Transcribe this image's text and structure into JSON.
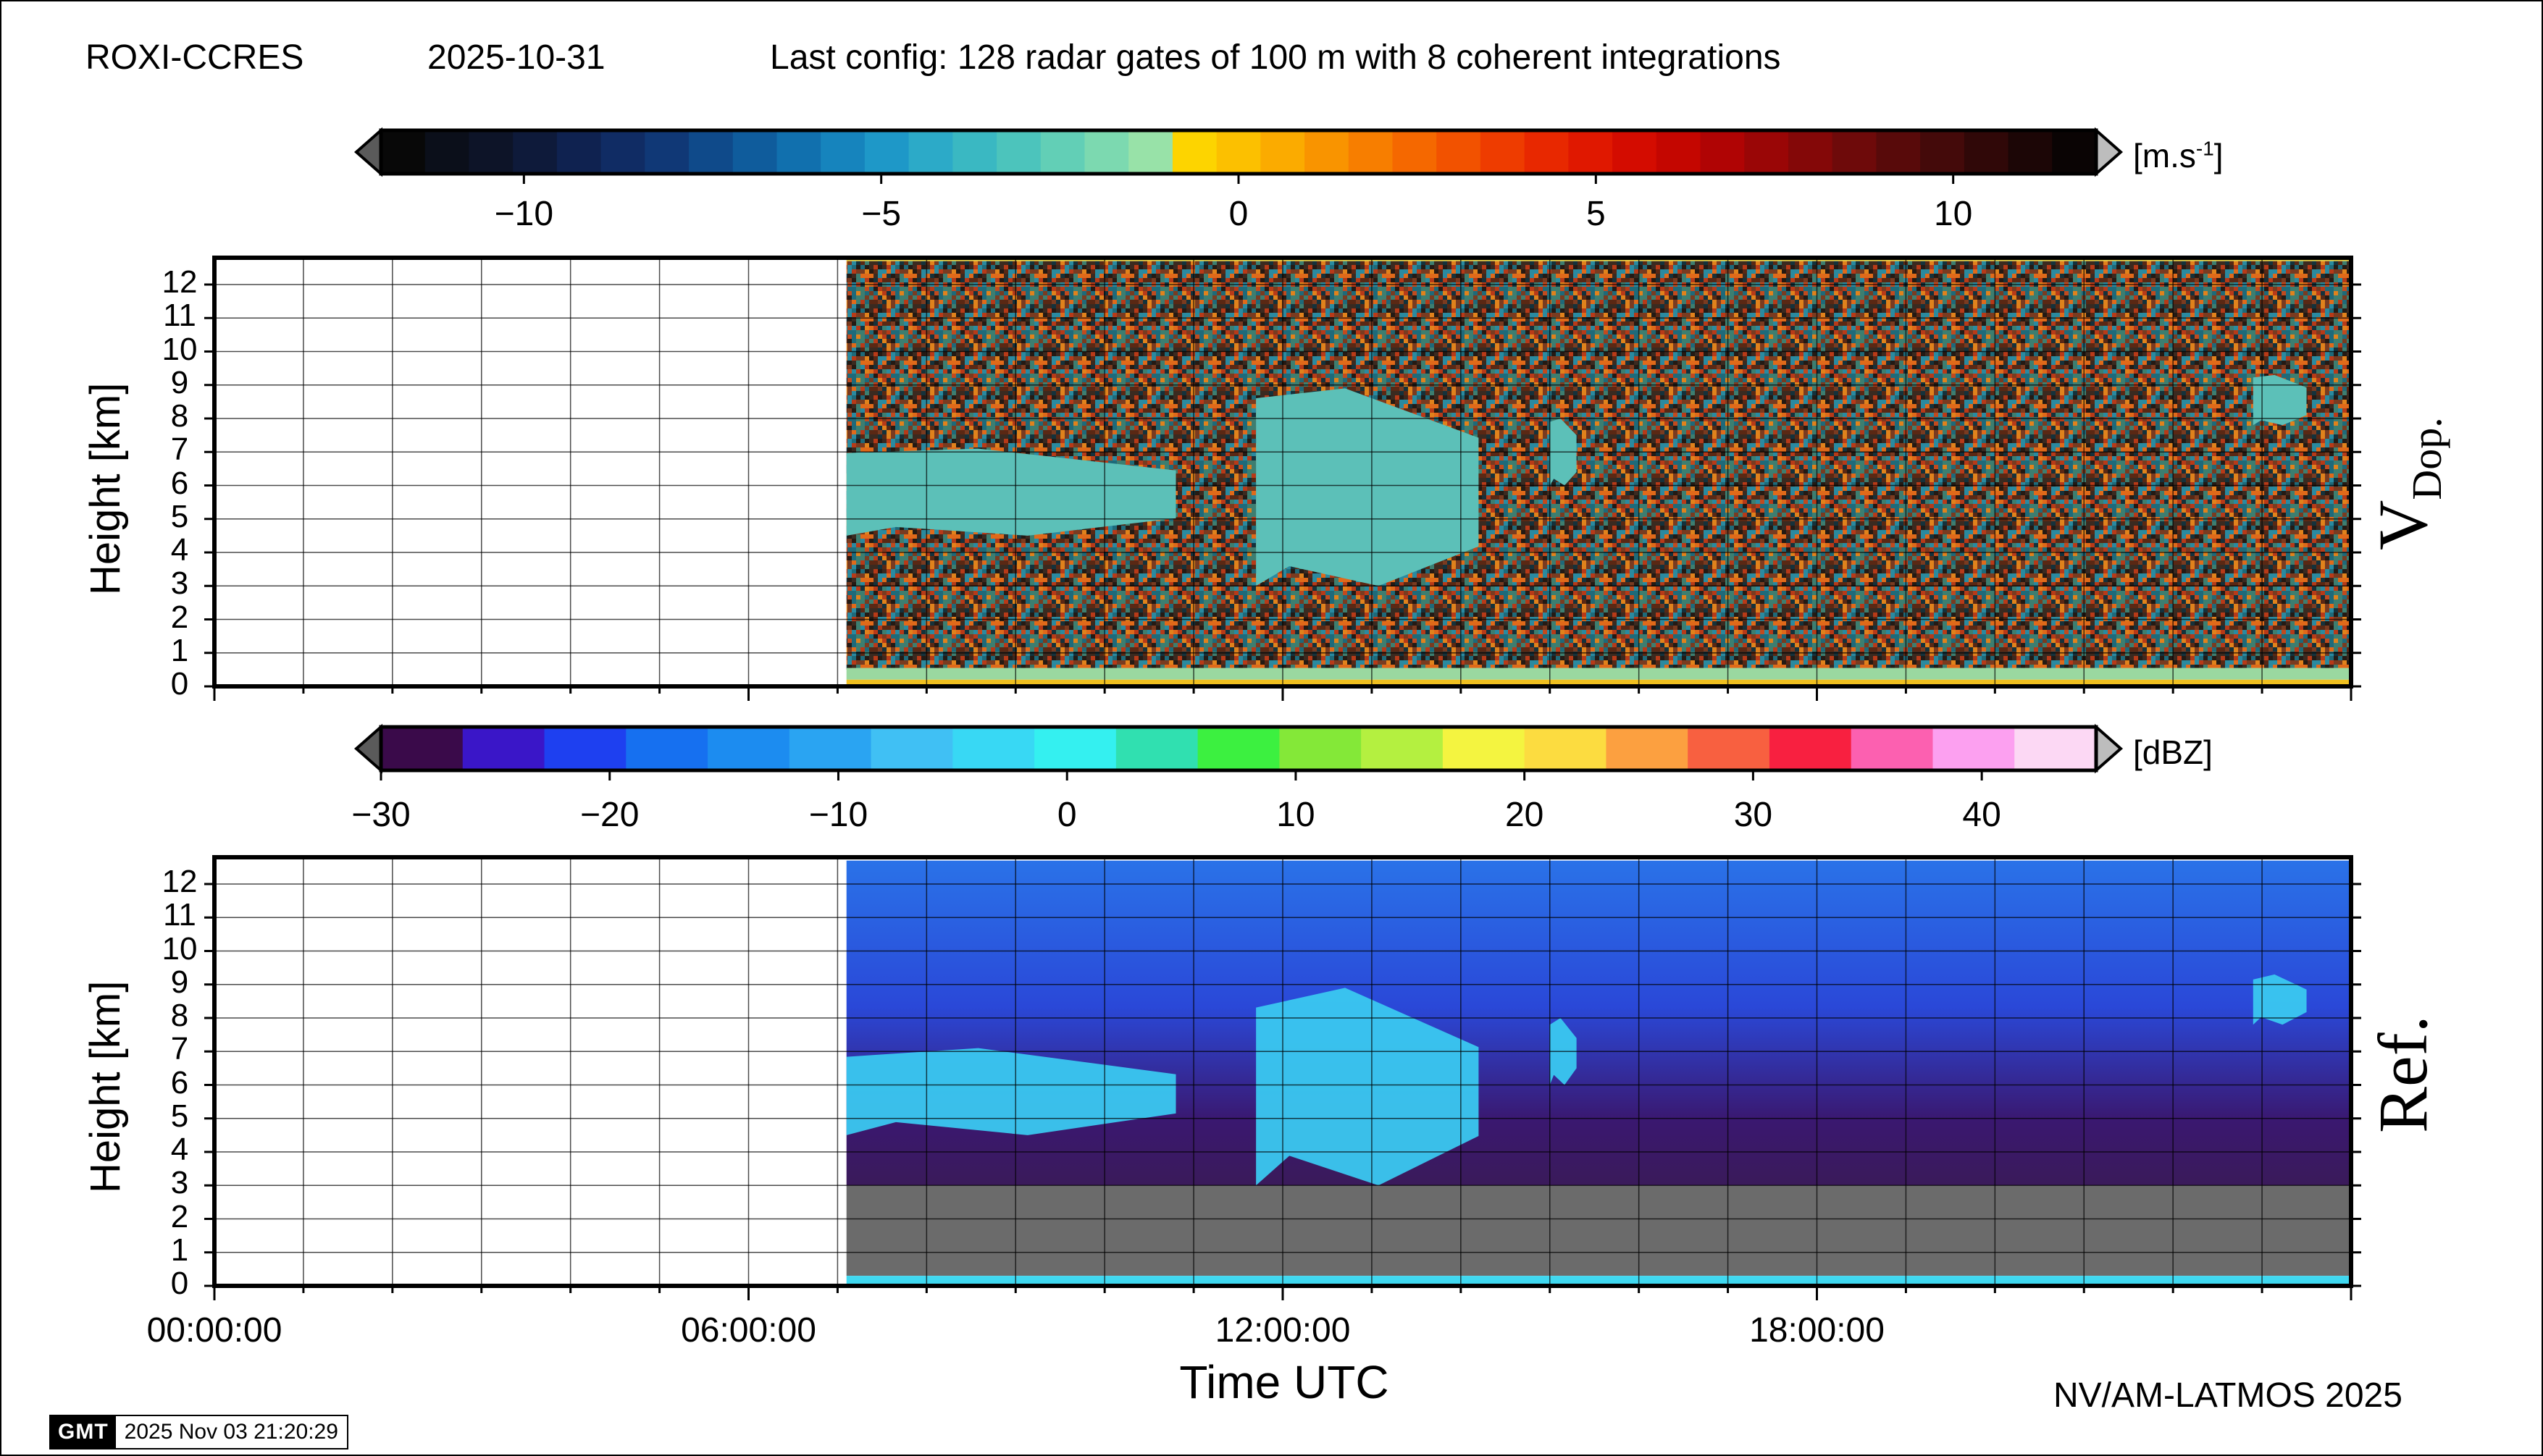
{
  "header": {
    "station": "ROXI-CCRES",
    "date": "2025-10-31",
    "config": "Last config: 128 radar gates of 100 m with 8 coherent integrations"
  },
  "colorbar_velocity": {
    "unit_main": "[m.s",
    "unit_sup": "-1",
    "unit_end": "]",
    "range": [
      -12,
      12
    ],
    "tick_labels": [
      "−10",
      "−5",
      "0",
      "5",
      "10"
    ],
    "tick_values": [
      -10,
      -5,
      0,
      5,
      10
    ],
    "colors": [
      "#080808",
      "#0b0f1a",
      "#0d1428",
      "#0e1a3a",
      "#0f2250",
      "#102c64",
      "#103876",
      "#0f4a8a",
      "#0f5c9c",
      "#1170ae",
      "#1684bd",
      "#1e98c8",
      "#2caac8",
      "#3ab8c2",
      "#4cc4bc",
      "#62cfb6",
      "#7cd9b0",
      "#98e2a8",
      "#fdd400",
      "#fcc000",
      "#fbab00",
      "#f99400",
      "#f77e00",
      "#f56800",
      "#f25200",
      "#ee3c00",
      "#e82800",
      "#e01800",
      "#d40c00",
      "#c40600",
      "#b00404",
      "#9a0606",
      "#840808",
      "#6e0a0a",
      "#580a0a",
      "#440a0a",
      "#300808",
      "#1c0606",
      "#0a0404"
    ]
  },
  "colorbar_reflectivity": {
    "unit": "[dBZ]",
    "range": [
      -30,
      45
    ],
    "tick_labels": [
      "−30",
      "−20",
      "−10",
      "0",
      "10",
      "20",
      "30",
      "40"
    ],
    "tick_values": [
      -30,
      -20,
      -10,
      0,
      10,
      20,
      30,
      40
    ],
    "colors": [
      "#3a0a4a",
      "#3a16c8",
      "#1e40f0",
      "#1670f0",
      "#1c8cf0",
      "#2aa4f2",
      "#40c0f4",
      "#38d8f4",
      "#34f0f0",
      "#30e0b0",
      "#3cf040",
      "#84e838",
      "#b4f040",
      "#f4f440",
      "#fcdc40",
      "#fca040",
      "#f86040",
      "#f82040",
      "#fc60b0",
      "#fca0f0",
      "#fcd8f4"
    ]
  },
  "panels": {
    "velocity_label_main": "V",
    "velocity_label_sub": "Dop.",
    "reflectivity_label": "Ref.",
    "y_axis_label": "Height [km]",
    "y_tick_labels": [
      "0",
      "1",
      "2",
      "3",
      "4",
      "5",
      "6",
      "7",
      "8",
      "9",
      "10",
      "11",
      "12"
    ]
  },
  "x_axis": {
    "label": "Time UTC",
    "tick_labels": [
      "00:00:00",
      "06:00:00",
      "12:00:00",
      "18:00:00"
    ]
  },
  "chart_data": [
    {
      "type": "heatmap",
      "title": "",
      "series_label": "V Dop.",
      "xlabel": "Time UTC",
      "ylabel": "Height [km]",
      "x_range": [
        "00:00:00",
        "24:00:00"
      ],
      "xlim_hours": [
        0,
        24
      ],
      "ylim": [
        0,
        12.8
      ],
      "colorbar_unit": "m.s-1",
      "colorbar_range": [
        -12,
        12
      ],
      "data_start_hour": 7.1,
      "grid": true,
      "cloud_regions": [
        {
          "start_hour": 7.1,
          "end_hour": 10.8,
          "base_km": 4.5,
          "top_km": 7.1,
          "value_ms": -1.5
        },
        {
          "start_hour": 11.7,
          "end_hour": 14.2,
          "base_km": 3.0,
          "top_km": 8.9,
          "value_ms": -1.5
        },
        {
          "start_hour": 15.0,
          "end_hour": 15.3,
          "base_km": 6.0,
          "top_km": 8.0,
          "value_ms": -1.5
        },
        {
          "start_hour": 22.9,
          "end_hour": 23.5,
          "base_km": 7.8,
          "top_km": 9.3,
          "value_ms": -1.5
        }
      ]
    },
    {
      "type": "heatmap",
      "title": "",
      "series_label": "Ref.",
      "xlabel": "Time UTC",
      "ylabel": "Height [km]",
      "x_range": [
        "00:00:00",
        "24:00:00"
      ],
      "xlim_hours": [
        0,
        24
      ],
      "ylim": [
        0,
        12.8
      ],
      "colorbar_unit": "dBZ",
      "colorbar_range": [
        -30,
        45
      ],
      "data_start_hour": 7.1,
      "grid": true,
      "cloud_regions": [
        {
          "start_hour": 7.1,
          "end_hour": 10.8,
          "base_km": 4.5,
          "top_km": 7.1,
          "value_dbz": -3
        },
        {
          "start_hour": 11.7,
          "end_hour": 14.2,
          "base_km": 3.0,
          "top_km": 8.9,
          "value_dbz": -5
        },
        {
          "start_hour": 15.0,
          "end_hour": 15.3,
          "base_km": 6.0,
          "top_km": 8.0,
          "value_dbz": -8
        },
        {
          "start_hour": 22.9,
          "end_hour": 23.5,
          "base_km": 7.8,
          "top_km": 9.3,
          "value_dbz": -12
        }
      ]
    }
  ],
  "footer": {
    "credit": "NV/AM-LATMOS 2025",
    "stamp_logo": "GMT",
    "stamp_time": "2025 Nov 03 21:20:29"
  }
}
